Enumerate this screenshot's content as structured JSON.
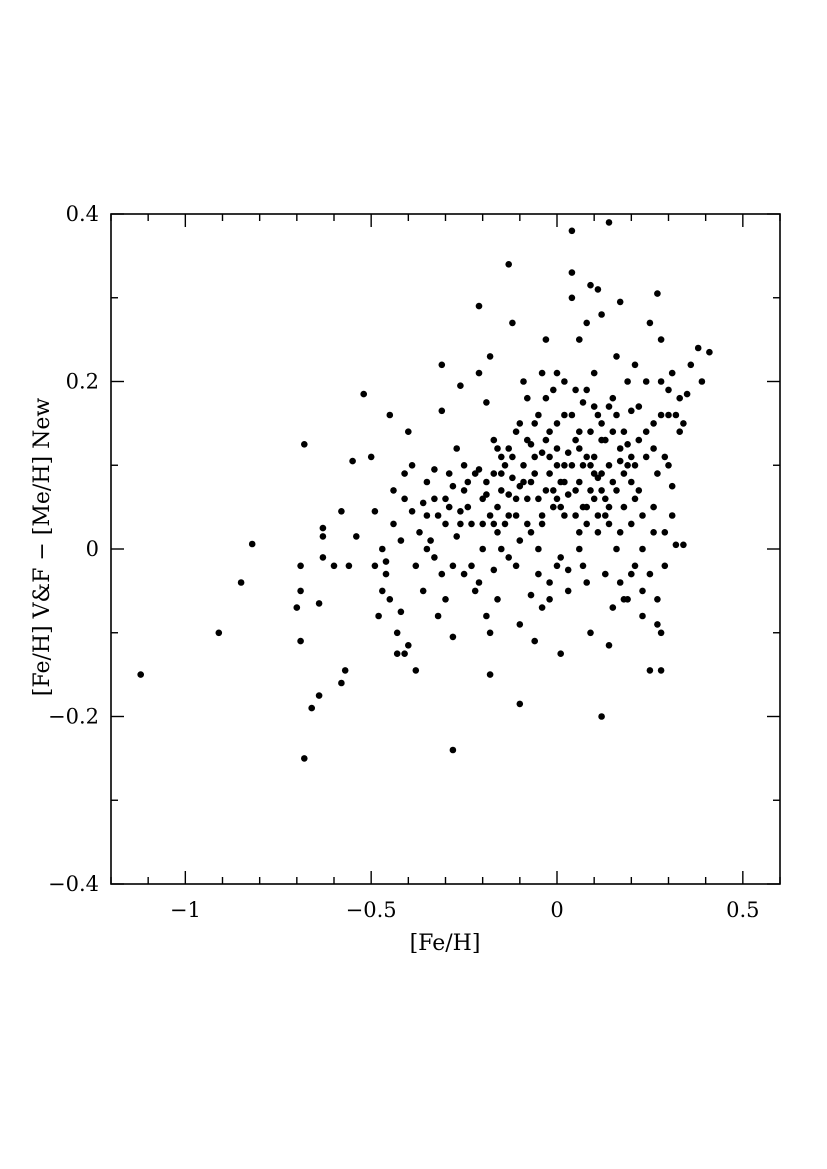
{
  "chart_data": {
    "type": "scatter",
    "title": "",
    "xlabel": "[Fe/H]",
    "ylabel": "[Fe/H] V&F − [Me/H] New",
    "xlim": [
      -1.2,
      0.6
    ],
    "ylim": [
      -0.4,
      0.4
    ],
    "xticks": [
      -1,
      -0.5,
      0,
      0.5
    ],
    "xtick_labels": [
      "−1",
      "−0.5",
      "0",
      "0.5"
    ],
    "yticks": [
      -0.4,
      -0.2,
      0,
      0.2,
      0.4
    ],
    "ytick_labels": [
      "−0.4",
      "−0.2",
      "0",
      "0.2",
      "0.4"
    ],
    "grid": false,
    "marker_color": "#000000",
    "points": [
      [
        -1.12,
        -0.15
      ],
      [
        -0.91,
        -0.1
      ],
      [
        -0.85,
        -0.04
      ],
      [
        -0.82,
        0.006
      ],
      [
        -0.7,
        -0.07
      ],
      [
        -0.69,
        -0.11
      ],
      [
        -0.69,
        -0.05
      ],
      [
        -0.69,
        -0.02
      ],
      [
        -0.68,
        0.125
      ],
      [
        -0.68,
        -0.25
      ],
      [
        -0.66,
        -0.19
      ],
      [
        -0.64,
        -0.175
      ],
      [
        -0.64,
        -0.065
      ],
      [
        -0.63,
        0.025
      ],
      [
        -0.63,
        0.015
      ],
      [
        -0.63,
        -0.01
      ],
      [
        -0.6,
        -0.02
      ],
      [
        -0.58,
        -0.16
      ],
      [
        -0.57,
        -0.145
      ],
      [
        -0.58,
        0.045
      ],
      [
        -0.56,
        -0.02
      ],
      [
        -0.55,
        0.105
      ],
      [
        -0.54,
        0.015
      ],
      [
        -0.52,
        0.185
      ],
      [
        -0.5,
        0.11
      ],
      [
        -0.49,
        0.045
      ],
      [
        -0.49,
        -0.02
      ],
      [
        -0.48,
        -0.08
      ],
      [
        -0.47,
        0.0
      ],
      [
        -0.47,
        -0.05
      ],
      [
        -0.46,
        -0.015
      ],
      [
        -0.45,
        0.16
      ],
      [
        -0.45,
        -0.06
      ],
      [
        -0.44,
        0.07
      ],
      [
        -0.43,
        -0.1
      ],
      [
        -0.43,
        -0.125
      ],
      [
        -0.42,
        0.01
      ],
      [
        -0.42,
        -0.075
      ],
      [
        -0.41,
        0.09
      ],
      [
        -0.41,
        -0.125
      ],
      [
        -0.4,
        -0.115
      ],
      [
        -0.4,
        0.14
      ],
      [
        -0.39,
        0.045
      ],
      [
        -0.38,
        -0.02
      ],
      [
        -0.38,
        -0.145
      ],
      [
        -0.37,
        0.02
      ],
      [
        -0.36,
        0.055
      ],
      [
        -0.35,
        0.0
      ],
      [
        -0.35,
        0.04
      ],
      [
        -0.34,
        0.01
      ],
      [
        -0.33,
        0.095
      ],
      [
        -0.33,
        -0.01
      ],
      [
        -0.32,
        -0.08
      ],
      [
        -0.32,
        0.04
      ],
      [
        -0.31,
        0.22
      ],
      [
        -0.31,
        0.165
      ],
      [
        -0.3,
        -0.06
      ],
      [
        -0.3,
        0.03
      ],
      [
        -0.29,
        0.05
      ],
      [
        -0.28,
        -0.02
      ],
      [
        -0.28,
        -0.105
      ],
      [
        -0.28,
        0.075
      ],
      [
        -0.28,
        -0.24
      ],
      [
        -0.27,
        0.12
      ],
      [
        -0.26,
        0.195
      ],
      [
        -0.26,
        0.045
      ],
      [
        -0.25,
        -0.03
      ],
      [
        -0.25,
        0.1
      ],
      [
        -0.24,
        0.08
      ],
      [
        -0.23,
        0.03
      ],
      [
        -0.22,
        -0.05
      ],
      [
        -0.21,
        0.29
      ],
      [
        -0.21,
        0.095
      ],
      [
        -0.21,
        0.21
      ],
      [
        -0.2,
        0.06
      ],
      [
        -0.2,
        0.0
      ],
      [
        -0.19,
        0.175
      ],
      [
        -0.19,
        0.08
      ],
      [
        -0.18,
        -0.1
      ],
      [
        -0.18,
        -0.15
      ],
      [
        -0.18,
        0.23
      ],
      [
        -0.17,
        0.03
      ],
      [
        -0.17,
        -0.025
      ],
      [
        -0.16,
        0.12
      ],
      [
        -0.16,
        0.05
      ],
      [
        -0.15,
        0.09
      ],
      [
        -0.15,
        0.0
      ],
      [
        -0.14,
        0.1
      ],
      [
        -0.13,
        0.34
      ],
      [
        -0.13,
        0.04
      ],
      [
        -0.12,
        0.27
      ],
      [
        -0.12,
        0.11
      ],
      [
        -0.11,
        0.06
      ],
      [
        -0.11,
        -0.02
      ],
      [
        -0.1,
        0.15
      ],
      [
        -0.1,
        -0.09
      ],
      [
        -0.1,
        -0.185
      ],
      [
        -0.09,
        0.2
      ],
      [
        -0.09,
        0.08
      ],
      [
        -0.08,
        0.03
      ],
      [
        -0.08,
        0.18
      ],
      [
        -0.07,
        0.125
      ],
      [
        -0.07,
        -0.055
      ],
      [
        -0.06,
        0.09
      ],
      [
        -0.06,
        -0.11
      ],
      [
        -0.05,
        0.16
      ],
      [
        -0.05,
        0.06
      ],
      [
        -0.05,
        0.0
      ],
      [
        -0.04,
        0.21
      ],
      [
        -0.04,
        0.115
      ],
      [
        -0.04,
        -0.07
      ],
      [
        -0.03,
        0.25
      ],
      [
        -0.03,
        0.07
      ],
      [
        -0.02,
        0.14
      ],
      [
        -0.02,
        -0.04
      ],
      [
        -0.01,
        0.19
      ],
      [
        -0.01,
        0.05
      ],
      [
        0.0,
        0.1
      ],
      [
        0.0,
        -0.02
      ],
      [
        0.0,
        0.21
      ],
      [
        0.01,
        0.08
      ],
      [
        0.01,
        -0.125
      ],
      [
        0.02,
        0.16
      ],
      [
        0.02,
        0.04
      ],
      [
        0.03,
        0.115
      ],
      [
        0.03,
        -0.025
      ],
      [
        0.04,
        0.33
      ],
      [
        0.04,
        0.3
      ],
      [
        0.04,
        0.38
      ],
      [
        0.05,
        0.07
      ],
      [
        0.05,
        0.19
      ],
      [
        0.06,
        0.12
      ],
      [
        0.06,
        0.0
      ],
      [
        0.06,
        0.25
      ],
      [
        0.07,
        0.05
      ],
      [
        0.07,
        0.175
      ],
      [
        0.08,
        0.27
      ],
      [
        0.08,
        -0.04
      ],
      [
        0.09,
        0.1
      ],
      [
        0.09,
        0.14
      ],
      [
        0.09,
        0.315
      ],
      [
        0.1,
        0.06
      ],
      [
        0.1,
        0.21
      ],
      [
        0.11,
        0.16
      ],
      [
        0.11,
        0.31
      ],
      [
        0.11,
        0.02
      ],
      [
        0.12,
        0.09
      ],
      [
        0.12,
        -0.2
      ],
      [
        0.12,
        0.28
      ],
      [
        0.13,
        0.13
      ],
      [
        0.13,
        0.04
      ],
      [
        0.14,
        0.39
      ],
      [
        0.14,
        -0.115
      ],
      [
        0.15,
        0.18
      ],
      [
        0.15,
        0.08
      ],
      [
        0.16,
        0.23
      ],
      [
        0.16,
        0.0
      ],
      [
        0.17,
        0.12
      ],
      [
        0.17,
        0.295
      ],
      [
        0.18,
        0.05
      ],
      [
        0.18,
        -0.06
      ],
      [
        0.19,
        0.2
      ],
      [
        0.19,
        0.1
      ],
      [
        0.2,
        0.165
      ],
      [
        0.2,
        -0.03
      ],
      [
        0.21,
        0.22
      ],
      [
        0.21,
        0.06
      ],
      [
        0.22,
        0.13
      ],
      [
        0.23,
        0.0
      ],
      [
        0.23,
        -0.05
      ],
      [
        0.24,
        0.2
      ],
      [
        0.24,
        0.11
      ],
      [
        0.25,
        0.27
      ],
      [
        0.25,
        -0.145
      ],
      [
        0.26,
        0.15
      ],
      [
        0.26,
        0.05
      ],
      [
        0.27,
        0.305
      ],
      [
        0.27,
        -0.06
      ],
      [
        0.27,
        0.09
      ],
      [
        0.28,
        0.25
      ],
      [
        0.28,
        0.2
      ],
      [
        0.28,
        -0.1
      ],
      [
        0.28,
        -0.145
      ],
      [
        0.29,
        0.11
      ],
      [
        0.29,
        0.02
      ],
      [
        0.3,
        0.16
      ],
      [
        0.3,
        0.19
      ],
      [
        0.31,
        0.075
      ],
      [
        0.31,
        0.21
      ],
      [
        0.32,
        0.005
      ],
      [
        0.32,
        0.16
      ],
      [
        0.33,
        0.14
      ],
      [
        0.33,
        0.18
      ],
      [
        0.34,
        0.15
      ],
      [
        0.35,
        0.185
      ],
      [
        0.36,
        0.22
      ],
      [
        0.38,
        0.24
      ],
      [
        0.39,
        0.2
      ],
      [
        0.41,
        0.235
      ],
      [
        0.34,
        0.005
      ],
      [
        -0.02,
        0.09
      ],
      [
        -0.01,
        0.07
      ],
      [
        0.0,
        0.12
      ],
      [
        0.01,
        0.05
      ],
      [
        0.02,
        0.1
      ],
      [
        0.03,
        0.065
      ],
      [
        0.05,
        0.13
      ],
      [
        0.06,
        0.08
      ],
      [
        0.07,
        0.1
      ],
      [
        0.08,
        0.05
      ],
      [
        0.09,
        0.07
      ],
      [
        0.1,
        0.11
      ],
      [
        0.11,
        0.085
      ],
      [
        0.12,
        0.13
      ],
      [
        0.13,
        0.06
      ],
      [
        0.14,
        0.1
      ],
      [
        0.15,
        0.14
      ],
      [
        0.16,
        0.07
      ],
      [
        0.17,
        0.105
      ],
      [
        0.18,
        0.09
      ],
      [
        0.19,
        0.125
      ],
      [
        0.2,
        0.08
      ],
      [
        0.21,
        0.1
      ],
      [
        0.22,
        0.07
      ],
      [
        -0.06,
        0.11
      ],
      [
        -0.07,
        0.08
      ],
      [
        -0.08,
        0.06
      ],
      [
        -0.09,
        0.1
      ],
      [
        -0.1,
        0.075
      ],
      [
        -0.11,
        0.04
      ],
      [
        -0.12,
        0.085
      ],
      [
        -0.13,
        0.065
      ],
      [
        -0.14,
        0.03
      ],
      [
        -0.15,
        0.07
      ],
      [
        -0.16,
        0.02
      ],
      [
        -0.17,
        0.09
      ],
      [
        -0.18,
        0.04
      ],
      [
        -0.19,
        0.065
      ],
      [
        -0.2,
        0.03
      ],
      [
        -0.22,
        0.09
      ],
      [
        -0.24,
        0.05
      ],
      [
        -0.25,
        0.07
      ],
      [
        -0.26,
        0.03
      ],
      [
        -0.27,
        0.015
      ],
      [
        -0.29,
        0.09
      ],
      [
        -0.3,
        0.06
      ],
      [
        -0.04,
        0.03
      ],
      [
        -0.03,
        0.18
      ],
      [
        0.0,
        0.15
      ],
      [
        0.02,
        0.2
      ],
      [
        0.04,
        0.16
      ],
      [
        0.06,
        0.02
      ],
      [
        0.08,
        0.19
      ],
      [
        0.1,
        0.17
      ],
      [
        0.12,
        0.15
      ],
      [
        0.14,
        0.17
      ],
      [
        0.16,
        0.16
      ],
      [
        0.18,
        0.14
      ],
      [
        0.2,
        0.11
      ],
      [
        0.22,
        0.17
      ],
      [
        0.24,
        0.14
      ],
      [
        0.26,
        0.12
      ],
      [
        0.28,
        0.16
      ],
      [
        0.3,
        0.1
      ],
      [
        -0.05,
        -0.03
      ],
      [
        -0.02,
        -0.06
      ],
      [
        0.01,
        -0.01
      ],
      [
        0.03,
        -0.05
      ],
      [
        0.07,
        -0.02
      ],
      [
        0.09,
        -0.1
      ],
      [
        0.13,
        -0.03
      ],
      [
        0.15,
        -0.07
      ],
      [
        0.17,
        -0.04
      ],
      [
        0.19,
        -0.06
      ],
      [
        0.21,
        -0.02
      ],
      [
        0.23,
        -0.08
      ],
      [
        0.25,
        -0.03
      ],
      [
        0.27,
        -0.09
      ],
      [
        0.29,
        -0.02
      ],
      [
        0.31,
        0.04
      ],
      [
        -0.23,
        -0.02
      ],
      [
        -0.21,
        -0.04
      ],
      [
        -0.19,
        -0.08
      ],
      [
        -0.16,
        -0.06
      ],
      [
        -0.13,
        -0.01
      ],
      [
        -0.1,
        0.01
      ],
      [
        -0.07,
        0.02
      ],
      [
        -0.04,
        0.04
      ],
      [
        0.05,
        0.04
      ],
      [
        0.08,
        0.03
      ],
      [
        0.11,
        0.04
      ],
      [
        0.14,
        0.03
      ],
      [
        0.17,
        0.02
      ],
      [
        0.2,
        0.03
      ],
      [
        0.23,
        0.04
      ],
      [
        0.26,
        0.02
      ],
      [
        -0.35,
        0.08
      ],
      [
        -0.33,
        0.06
      ],
      [
        -0.31,
        -0.03
      ],
      [
        -0.36,
        -0.05
      ],
      [
        -0.39,
        0.1
      ],
      [
        -0.41,
        0.06
      ],
      [
        -0.44,
        0.03
      ],
      [
        -0.46,
        -0.03
      ],
      [
        0.0,
        0.06
      ],
      [
        0.02,
        0.08
      ],
      [
        0.04,
        0.1
      ],
      [
        0.06,
        0.14
      ],
      [
        0.08,
        0.11
      ],
      [
        0.1,
        0.09
      ],
      [
        0.12,
        0.07
      ],
      [
        0.14,
        0.05
      ],
      [
        -0.02,
        0.11
      ],
      [
        -0.03,
        0.13
      ],
      [
        -0.06,
        0.15
      ],
      [
        -0.08,
        0.13
      ],
      [
        -0.11,
        0.14
      ],
      [
        -0.13,
        0.12
      ],
      [
        -0.15,
        0.11
      ],
      [
        -0.17,
        0.13
      ]
    ]
  }
}
